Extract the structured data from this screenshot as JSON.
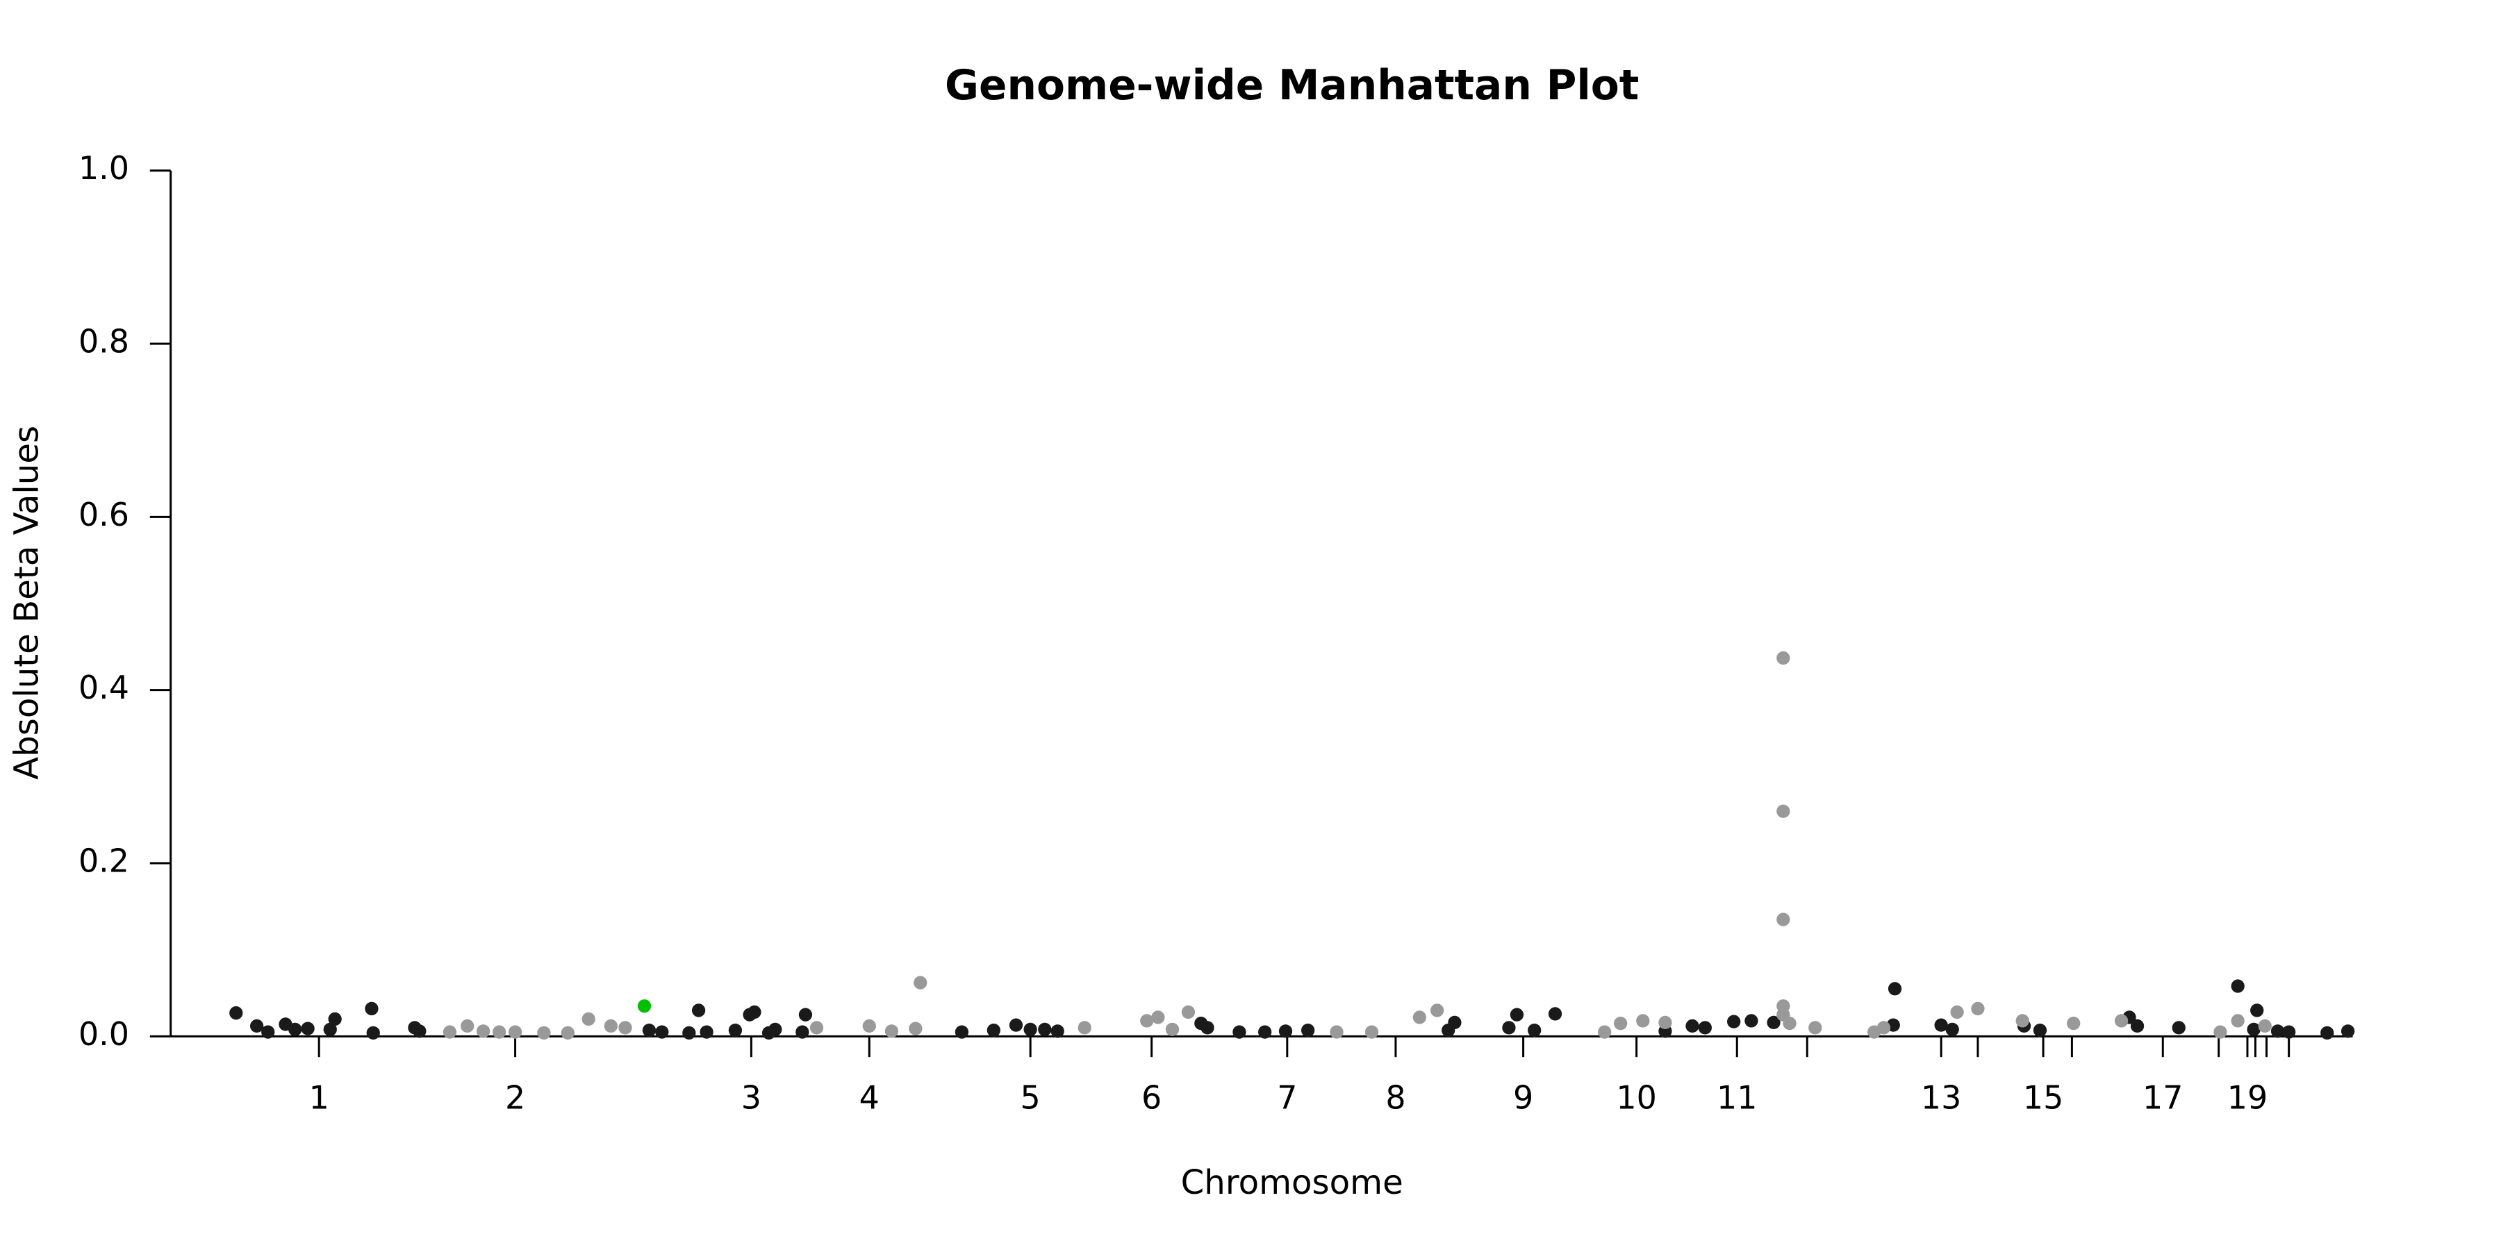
{
  "chart_data": {
    "type": "scatter",
    "title": "Genome-wide Manhattan Plot",
    "x_label": "Chromosome",
    "y_label": "Absolute Beta Values",
    "xlim": [
      0,
      1368
    ],
    "ylim": [
      0,
      1.0
    ],
    "yticks": [
      {
        "value": 0,
        "label": "0.0"
      },
      0.2,
      0.4,
      0.6,
      0.8,
      {
        "value": 1.0,
        "label": "1.0"
      }
    ],
    "xticks": [
      {
        "value": 93,
        "label": "1"
      },
      {
        "value": 216,
        "label": "2"
      },
      {
        "value": 364,
        "label": "3"
      },
      {
        "value": 438,
        "label": "4"
      },
      {
        "value": 539,
        "label": "5"
      },
      {
        "value": 615,
        "label": "6"
      },
      {
        "value": 700,
        "label": "7"
      },
      {
        "value": 768,
        "label": "8"
      },
      {
        "value": 848,
        "label": "9"
      },
      {
        "value": 919,
        "label": "10"
      },
      {
        "value": 982,
        "label": "11"
      },
      {
        "value": 1026,
        "label": null
      },
      {
        "value": 1110,
        "label": "13"
      },
      {
        "value": 1133,
        "label": null
      },
      {
        "value": 1174,
        "label": "15"
      },
      {
        "value": 1192,
        "label": null
      },
      {
        "value": 1249,
        "label": "17"
      },
      {
        "value": 1284,
        "label": null
      },
      {
        "value": 1302,
        "label": "19"
      },
      {
        "value": 1307,
        "label": null
      },
      {
        "value": 1314,
        "label": null
      },
      {
        "value": 1328,
        "label": null
      }
    ],
    "series": [
      {
        "color": "#1a1a1a",
        "x": [
          41,
          54,
          61,
          72,
          78,
          86,
          100,
          103,
          126,
          127,
          153,
          156,
          331,
          300,
          308,
          325,
          336,
          354,
          363,
          366,
          375,
          379,
          398,
          396,
          496,
          516,
          530,
          539,
          548,
          556,
          646,
          650,
          670,
          686,
          699,
          713,
          805,
          801,
          844,
          839,
          855,
          868,
          937,
          954,
          962,
          980,
          991,
          1005,
          1081,
          1080,
          1110,
          1117,
          1162,
          1172,
          1228,
          1233,
          1259,
          1296,
          1308,
          1306,
          1321,
          1328,
          1352,
          1365
        ],
        "values": [
          0.027,
          0.012,
          0.005,
          0.014,
          0.008,
          0.009,
          0.008,
          0.02,
          0.032,
          0.004,
          0.01,
          0.006,
          0.03,
          0.007,
          0.005,
          0.004,
          0.005,
          0.007,
          0.025,
          0.028,
          0.004,
          0.008,
          0.025,
          0.005,
          0.005,
          0.007,
          0.013,
          0.008,
          0.008,
          0.006,
          0.015,
          0.01,
          0.005,
          0.005,
          0.006,
          0.007,
          0.016,
          0.007,
          0.025,
          0.01,
          0.007,
          0.026,
          0.006,
          0.012,
          0.01,
          0.017,
          0.018,
          0.016,
          0.055,
          0.013,
          0.013,
          0.008,
          0.012,
          0.007,
          0.022,
          0.012,
          0.01,
          0.058,
          0.03,
          0.008,
          0.006,
          0.005,
          0.004,
          0.006
        ]
      },
      {
        "color": "#999999",
        "x": [
          175,
          186,
          196,
          206,
          216,
          234,
          249,
          262,
          276,
          285,
          405,
          438,
          452,
          467,
          470,
          573,
          612,
          619,
          638,
          628,
          731,
          753,
          783,
          794,
          909,
          923,
          937,
          899,
          1011,
          1011,
          1011,
          1011,
          1011,
          1015,
          1031,
          1068,
          1074,
          1120,
          1133,
          1161,
          1193,
          1223,
          1296,
          1285,
          1313
        ],
        "values": [
          0.005,
          0.012,
          0.006,
          0.005,
          0.005,
          0.004,
          0.004,
          0.02,
          0.012,
          0.01,
          0.01,
          0.012,
          0.006,
          0.009,
          0.062,
          0.01,
          0.018,
          0.022,
          0.028,
          0.008,
          0.005,
          0.005,
          0.022,
          0.03,
          0.015,
          0.018,
          0.016,
          0.005,
          0.437,
          0.26,
          0.135,
          0.035,
          0.025,
          0.015,
          0.01,
          0.005,
          0.01,
          0.028,
          0.032,
          0.018,
          0.015,
          0.018,
          0.018,
          0.005,
          0.012
        ]
      },
      {
        "color": "#00c000",
        "x": [
          297
        ],
        "values": [
          0.035
        ]
      }
    ]
  }
}
